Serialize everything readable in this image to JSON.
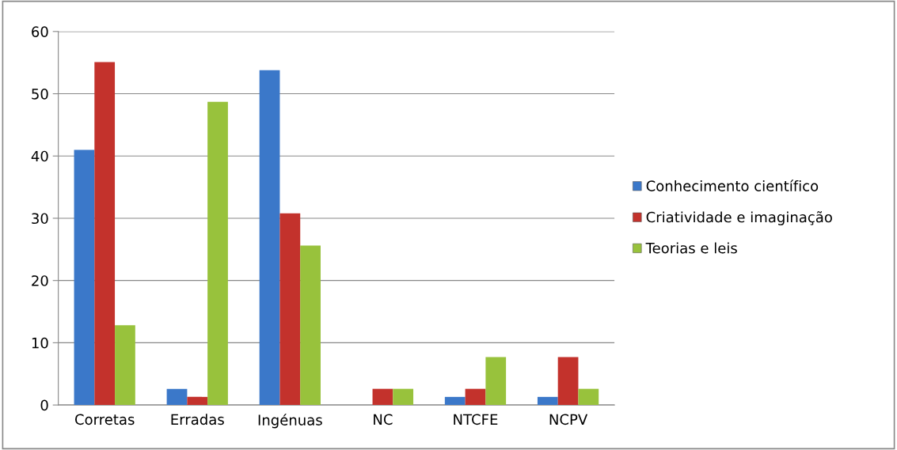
{
  "chart_data": {
    "type": "bar",
    "categories": [
      "Corretas",
      "Erradas",
      "Ingénuas",
      "NC",
      "NTCFE",
      "NCPV"
    ],
    "series": [
      {
        "name": "Conhecimento científico",
        "color": "#3b78c9",
        "values": [
          41.0,
          2.6,
          53.8,
          0,
          1.3,
          1.3
        ]
      },
      {
        "name": "Criatividade e imaginação",
        "color": "#c3322c",
        "values": [
          55.1,
          1.3,
          30.8,
          2.6,
          2.6,
          7.7
        ]
      },
      {
        "name": "Teorias e leis",
        "color": "#98c23c",
        "values": [
          12.8,
          48.7,
          25.6,
          2.6,
          7.7,
          2.6
        ]
      }
    ],
    "ylim": [
      0,
      60
    ],
    "yticks": [
      0,
      10,
      20,
      30,
      40,
      50,
      60
    ],
    "grid": "y",
    "legend": "right"
  }
}
